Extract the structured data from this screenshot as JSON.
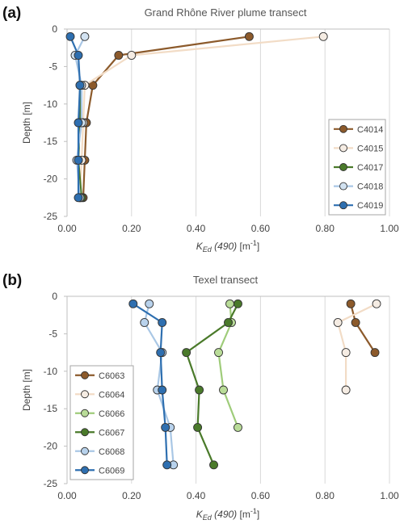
{
  "chart_data": [
    {
      "panel_label": "(a)",
      "type": "line",
      "title": "Grand Rhône River plume transect",
      "xlabel_main": "K",
      "xlabel_sub": "Ed",
      "xlabel_rest": " (490)",
      "xlabel_unit": " [m",
      "xlabel_sup": "-1",
      "xlabel_close": "]",
      "ylabel": "Depth [m]",
      "xlim": [
        0,
        1
      ],
      "ylim": [
        -25,
        0
      ],
      "x_ticks": [
        0,
        0.2,
        0.4,
        0.6,
        0.8,
        1.0
      ],
      "x_tick_labels": [
        "0.00",
        "0.20",
        "0.40",
        "0.60",
        "0.80",
        "1.00"
      ],
      "y_ticks": [
        0,
        -5,
        -10,
        -15,
        -20,
        -25
      ],
      "y_tick_labels": [
        "0",
        "-5",
        "-10",
        "-15",
        "-20",
        "-25"
      ],
      "grid": "vertical",
      "legend_position": "right",
      "series": [
        {
          "name": "C4014",
          "color": "#8c5a2b",
          "fill": "#8c5a2b",
          "points": [
            [
              0.565,
              -1
            ],
            [
              0.16,
              -3.5
            ],
            [
              0.08,
              -7.5
            ],
            [
              0.06,
              -12.5
            ],
            [
              0.055,
              -17.5
            ],
            [
              0.05,
              -22.5
            ]
          ]
        },
        {
          "name": "C4015",
          "color": "#f2dcc6",
          "fill": "#f5ece3",
          "points": [
            [
              0.795,
              -1
            ],
            [
              0.2,
              -3.5
            ],
            [
              0.055,
              -7.5
            ],
            [
              0.05,
              -12.5
            ],
            [
              0.045,
              -17.5
            ],
            [
              0.04,
              -22.5
            ]
          ]
        },
        {
          "name": "C4017",
          "color": "#4a7a2a",
          "fill": "#4a7a2a",
          "points": [
            [
              0.04,
              -7.5
            ],
            [
              0.04,
              -12.5
            ],
            [
              0.035,
              -17.5
            ],
            [
              0.045,
              -22.5
            ]
          ]
        },
        {
          "name": "C4018",
          "color": "#a9c7e5",
          "fill": "#d2e2f1",
          "points": [
            [
              0.055,
              -1
            ],
            [
              0.025,
              -3.5
            ],
            [
              0.045,
              -7.5
            ],
            [
              0.045,
              -12.5
            ],
            [
              0.03,
              -17.5
            ],
            [
              0.04,
              -22.5
            ]
          ]
        },
        {
          "name": "C4019",
          "color": "#2e6fb0",
          "fill": "#2e6fb0",
          "points": [
            [
              0.01,
              -1
            ],
            [
              0.035,
              -3.5
            ],
            [
              0.04,
              -7.5
            ],
            [
              0.035,
              -12.5
            ],
            [
              0.035,
              -17.5
            ],
            [
              0.035,
              -22.5
            ]
          ]
        }
      ]
    },
    {
      "panel_label": "(b)",
      "type": "line",
      "title": "Texel transect",
      "xlabel_main": "K",
      "xlabel_sub": "Ed",
      "xlabel_rest": " (490)",
      "xlabel_unit": " [m",
      "xlabel_sup": "-1",
      "xlabel_close": "]",
      "ylabel": "Depth [m]",
      "xlim": [
        0,
        1
      ],
      "ylim": [
        -25,
        0
      ],
      "x_ticks": [
        0,
        0.2,
        0.4,
        0.6,
        0.8,
        1.0
      ],
      "x_tick_labels": [
        "0.00",
        "0.20",
        "0.40",
        "0.60",
        "0.80",
        "1.00"
      ],
      "y_ticks": [
        0,
        -5,
        -10,
        -15,
        -20,
        -25
      ],
      "y_tick_labels": [
        "0",
        "-5",
        "-10",
        "-15",
        "-20",
        "-25"
      ],
      "grid": "vertical",
      "legend_position": "left",
      "series": [
        {
          "name": "C6063",
          "color": "#8c5a2b",
          "fill": "#8c5a2b",
          "points": [
            [
              0.88,
              -1
            ],
            [
              0.895,
              -3.5
            ],
            [
              0.955,
              -7.5
            ]
          ]
        },
        {
          "name": "C6064",
          "color": "#f2dcc6",
          "fill": "#f5ece3",
          "points": [
            [
              0.96,
              -1
            ],
            [
              0.84,
              -3.5
            ],
            [
              0.865,
              -7.5
            ],
            [
              0.865,
              -12.5
            ]
          ]
        },
        {
          "name": "C6066",
          "color": "#9fcc7a",
          "fill": "#b9dc98",
          "points": [
            [
              0.505,
              -1
            ],
            [
              0.51,
              -3.5
            ],
            [
              0.47,
              -7.5
            ],
            [
              0.485,
              -12.5
            ],
            [
              0.53,
              -17.5
            ]
          ]
        },
        {
          "name": "C6067",
          "color": "#4a7a2a",
          "fill": "#4a7a2a",
          "points": [
            [
              0.53,
              -1
            ],
            [
              0.5,
              -3.5
            ],
            [
              0.37,
              -7.5
            ],
            [
              0.41,
              -12.5
            ],
            [
              0.405,
              -17.5
            ],
            [
              0.455,
              -22.5
            ]
          ]
        },
        {
          "name": "C6068",
          "color": "#a9c7e5",
          "fill": "#b8d2ec",
          "points": [
            [
              0.255,
              -1
            ],
            [
              0.24,
              -3.5
            ],
            [
              0.295,
              -7.5
            ],
            [
              0.28,
              -12.5
            ],
            [
              0.32,
              -17.5
            ],
            [
              0.33,
              -22.5
            ]
          ]
        },
        {
          "name": "C6069",
          "color": "#2e6fb0",
          "fill": "#2e6fb0",
          "points": [
            [
              0.205,
              -1
            ],
            [
              0.295,
              -3.5
            ],
            [
              0.29,
              -7.5
            ],
            [
              0.295,
              -12.5
            ],
            [
              0.305,
              -17.5
            ],
            [
              0.31,
              -22.5
            ]
          ]
        }
      ]
    }
  ]
}
